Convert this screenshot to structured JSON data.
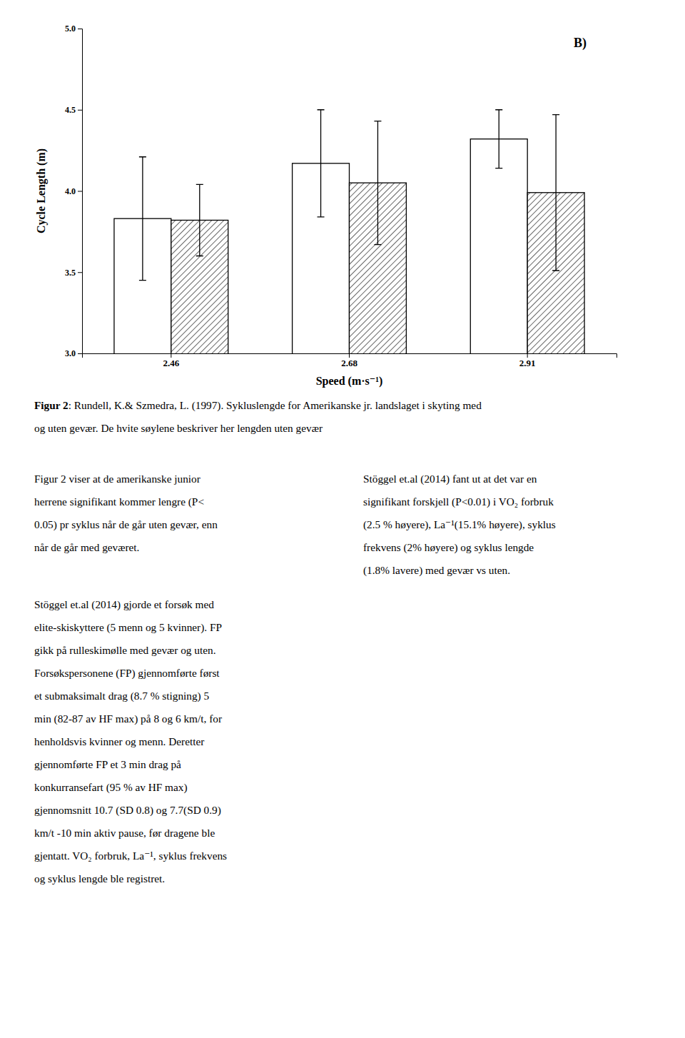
{
  "chart_data": {
    "type": "bar",
    "categories": [
      "2.46",
      "2.68",
      "2.91"
    ],
    "series": [
      {
        "color": "#ffffff",
        "values": [
          3.83,
          4.17,
          4.32
        ],
        "errors": [
          0.38,
          0.33,
          0.18
        ]
      },
      {
        "color": "#ffffff",
        "values": [
          3.82,
          4.05,
          3.99
        ],
        "errors": [
          0.22,
          0.38,
          0.48
        ]
      }
    ],
    "xlabel": "Speed (m·s⁻¹)",
    "ylabel": "Cycle Length (m)",
    "ylim": [
      3.0,
      5.0
    ],
    "yticks": [
      {
        "value": 3.0,
        "label": "3.0"
      },
      3.5,
      {
        "value": 4.0,
        "label": "4.0"
      },
      4.5,
      {
        "value": 5.0,
        "label": "5.0"
      }
    ],
    "annotation": "B)",
    "grid": false
  },
  "caption_bold": "Figur 2",
  "caption_lines": [
    ": Rundell, K.& Szmedra, L. (1997). Sykluslengde for Amerikanske jr. landslaget i skyting med",
    "og uten gevær. De hvite søylene beskriver her lengden uten gevær"
  ],
  "left_paragraph_1": [
    "Figur 2 viser at de amerikanske junior",
    "herrene signifikant kommer lengre (P<",
    "0.05) pr syklus når de går uten gevær, enn",
    "når de går med geværet."
  ],
  "left_paragraph_2": [
    "Stöggel et.al (2014) gjorde et forsøk med",
    "elite-skiskyttere (5 menn og 5 kvinner). FP",
    "gikk på rulleskimølle med gevær og uten.",
    "Forsøkspersonene (FP) gjennomførte først",
    "et submaksimalt drag (8.7 % stigning) 5",
    "min (82-87 av HF max) på 8 og 6 km/t, for",
    "henholdsvis kvinner og menn. Deretter",
    "gjennomførte FP et 3 min drag på",
    "konkurransefart (95 % av HF max)",
    "gjennomsnitt 10.7 (SD 0.8) og 7.7(SD 0.9)",
    "km/t -10 min aktiv pause, før dragene ble",
    "gjentatt. VO₂ forbruk, La⁻¹, syklus frekvens",
    "og syklus lengde ble registret."
  ],
  "right_paragraph": [
    "Stöggel et.al (2014) fant ut at det var en",
    "signifikant forskjell (P<0.01) i VO₂ forbruk",
    "(2.5 % høyere), La⁻¹(15.1% høyere), syklus",
    "frekvens (2% høyere) og syklus lengde",
    "(1.8% lavere) med gevær vs uten."
  ]
}
